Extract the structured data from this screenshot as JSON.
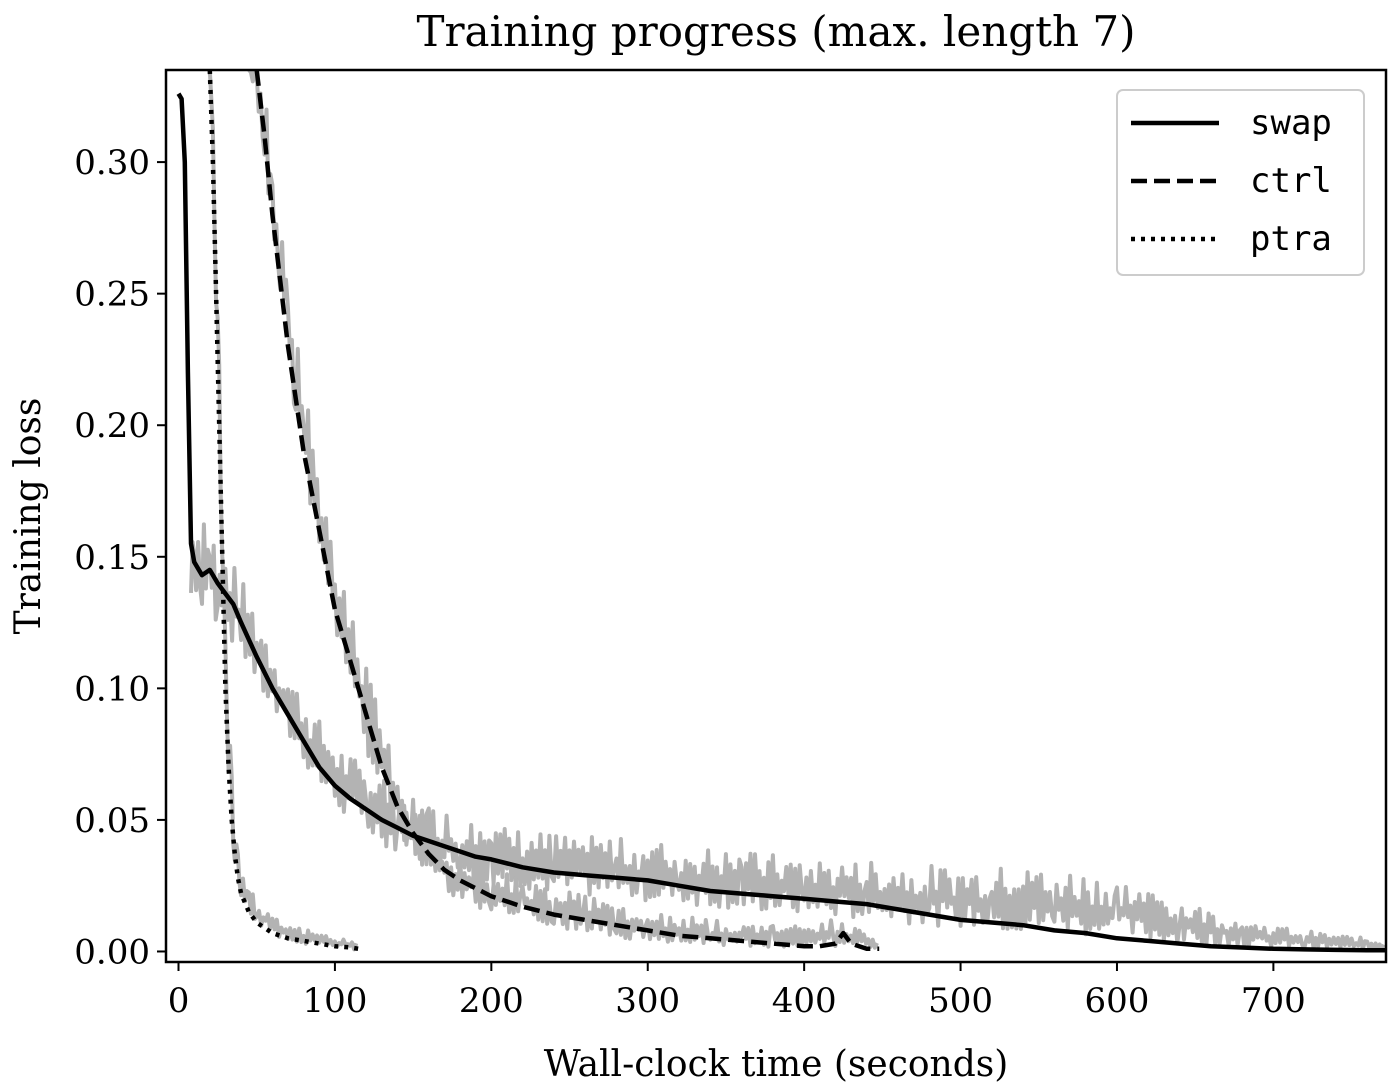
{
  "chart_data": {
    "type": "line",
    "title": "Training progress (max. length 7)",
    "xlabel": "Wall-clock time (seconds)",
    "ylabel": "Training loss",
    "xlim": [
      -8,
      772
    ],
    "ylim": [
      -0.004,
      0.335
    ],
    "xticks": [
      0,
      100,
      200,
      300,
      400,
      500,
      600,
      700
    ],
    "yticks": [
      0.0,
      0.05,
      0.1,
      0.15,
      0.2,
      0.25,
      0.3
    ],
    "xtick_labels": [
      "0",
      "100",
      "200",
      "300",
      "400",
      "500",
      "600",
      "700"
    ],
    "ytick_labels": [
      "0.00",
      "0.05",
      "0.10",
      "0.15",
      "0.20",
      "0.25",
      "0.30"
    ],
    "grid": false,
    "legend_position": "top-right",
    "raw_color": "#b3b3b3",
    "smoothed_color": "#000000",
    "series": [
      {
        "name": "swap",
        "style": "solid",
        "x": [
          0,
          2,
          4,
          6,
          8,
          10,
          15,
          20,
          25,
          30,
          35,
          40,
          50,
          60,
          70,
          80,
          90,
          100,
          110,
          120,
          130,
          140,
          150,
          160,
          170,
          180,
          190,
          200,
          220,
          240,
          260,
          280,
          300,
          320,
          340,
          360,
          380,
          400,
          420,
          440,
          460,
          480,
          500,
          520,
          540,
          560,
          580,
          600,
          620,
          640,
          660,
          680,
          700,
          720,
          740,
          760,
          772
        ],
        "y": [
          0.326,
          0.324,
          0.3,
          0.22,
          0.155,
          0.148,
          0.143,
          0.145,
          0.14,
          0.136,
          0.132,
          0.125,
          0.112,
          0.1,
          0.09,
          0.08,
          0.07,
          0.063,
          0.058,
          0.054,
          0.05,
          0.047,
          0.044,
          0.042,
          0.04,
          0.038,
          0.036,
          0.035,
          0.032,
          0.03,
          0.029,
          0.028,
          0.027,
          0.025,
          0.023,
          0.022,
          0.021,
          0.02,
          0.019,
          0.018,
          0.016,
          0.014,
          0.012,
          0.011,
          0.01,
          0.008,
          0.007,
          0.005,
          0.004,
          0.003,
          0.002,
          0.0015,
          0.001,
          0.0008,
          0.0006,
          0.0005,
          0.0005
        ]
      },
      {
        "name": "ctrl",
        "style": "dashed",
        "x": [
          50,
          55,
          60,
          65,
          70,
          75,
          80,
          85,
          90,
          95,
          100,
          110,
          120,
          130,
          140,
          150,
          160,
          170,
          180,
          190,
          200,
          220,
          240,
          260,
          280,
          300,
          320,
          340,
          360,
          380,
          400,
          410,
          420,
          425,
          430,
          440,
          448
        ],
        "y": [
          0.335,
          0.31,
          0.28,
          0.255,
          0.23,
          0.21,
          0.19,
          0.175,
          0.16,
          0.145,
          0.13,
          0.11,
          0.09,
          0.07,
          0.055,
          0.045,
          0.037,
          0.031,
          0.027,
          0.024,
          0.021,
          0.017,
          0.014,
          0.012,
          0.01,
          0.008,
          0.006,
          0.005,
          0.004,
          0.003,
          0.002,
          0.002,
          0.003,
          0.007,
          0.003,
          0.001,
          0.001
        ]
      },
      {
        "name": "ptra",
        "style": "dotted",
        "x": [
          20,
          22,
          24,
          26,
          28,
          30,
          32,
          34,
          36,
          38,
          40,
          45,
          50,
          55,
          60,
          70,
          80,
          90,
          100,
          110,
          115
        ],
        "y": [
          0.335,
          0.3,
          0.25,
          0.2,
          0.15,
          0.1,
          0.07,
          0.05,
          0.037,
          0.028,
          0.022,
          0.015,
          0.011,
          0.009,
          0.007,
          0.005,
          0.004,
          0.003,
          0.002,
          0.0015,
          0.001
        ]
      }
    ],
    "raw_bands": [
      {
        "name": "swap-raw",
        "x": [
          8,
          10,
          15,
          20,
          25,
          30,
          40,
          50,
          60,
          70,
          80,
          90,
          100,
          120,
          140,
          160,
          180,
          200,
          240,
          280,
          320,
          360,
          400,
          440,
          480,
          520,
          560,
          600,
          640,
          680,
          720,
          760,
          772
        ],
        "low": [
          0.125,
          0.13,
          0.125,
          0.122,
          0.118,
          0.115,
          0.108,
          0.096,
          0.085,
          0.076,
          0.067,
          0.058,
          0.05,
          0.04,
          0.033,
          0.028,
          0.025,
          0.022,
          0.018,
          0.016,
          0.014,
          0.012,
          0.01,
          0.008,
          0.006,
          0.004,
          0.002,
          0.001,
          0.0,
          0.0,
          0.0,
          0.0,
          0.0
        ],
        "high": [
          0.16,
          0.165,
          0.165,
          0.163,
          0.158,
          0.153,
          0.142,
          0.13,
          0.118,
          0.107,
          0.097,
          0.088,
          0.08,
          0.07,
          0.062,
          0.056,
          0.052,
          0.048,
          0.045,
          0.043,
          0.041,
          0.038,
          0.036,
          0.034,
          0.033,
          0.032,
          0.033,
          0.028,
          0.02,
          0.012,
          0.008,
          0.005,
          0.004
        ]
      },
      {
        "name": "ctrl-raw",
        "x": [
          45,
          50,
          55,
          60,
          65,
          70,
          75,
          80,
          90,
          100,
          110,
          120,
          130,
          140,
          150,
          160,
          170,
          180,
          200,
          220,
          240,
          260,
          280,
          300,
          340,
          380,
          420,
          448
        ],
        "low": [
          0.335,
          0.32,
          0.29,
          0.265,
          0.24,
          0.215,
          0.195,
          0.175,
          0.145,
          0.115,
          0.09,
          0.07,
          0.052,
          0.04,
          0.032,
          0.025,
          0.02,
          0.016,
          0.012,
          0.009,
          0.007,
          0.005,
          0.003,
          0.002,
          0.001,
          0.0,
          0.0,
          0.0
        ],
        "high": [
          0.335,
          0.335,
          0.33,
          0.3,
          0.28,
          0.26,
          0.235,
          0.215,
          0.185,
          0.155,
          0.13,
          0.11,
          0.09,
          0.073,
          0.06,
          0.05,
          0.043,
          0.038,
          0.032,
          0.028,
          0.024,
          0.021,
          0.018,
          0.015,
          0.012,
          0.01,
          0.012,
          0.005
        ]
      },
      {
        "name": "ptra-raw",
        "x": [
          20,
          22,
          24,
          26,
          28,
          30,
          32,
          34,
          36,
          38,
          40,
          45,
          50,
          60,
          70,
          80,
          90,
          100,
          115
        ],
        "low": [
          0.335,
          0.29,
          0.24,
          0.19,
          0.14,
          0.09,
          0.062,
          0.042,
          0.03,
          0.022,
          0.017,
          0.011,
          0.008,
          0.005,
          0.003,
          0.002,
          0.001,
          0.001,
          0.0
        ],
        "high": [
          0.335,
          0.32,
          0.275,
          0.225,
          0.175,
          0.125,
          0.09,
          0.068,
          0.053,
          0.043,
          0.035,
          0.025,
          0.02,
          0.015,
          0.011,
          0.009,
          0.007,
          0.005,
          0.004
        ]
      }
    ]
  }
}
